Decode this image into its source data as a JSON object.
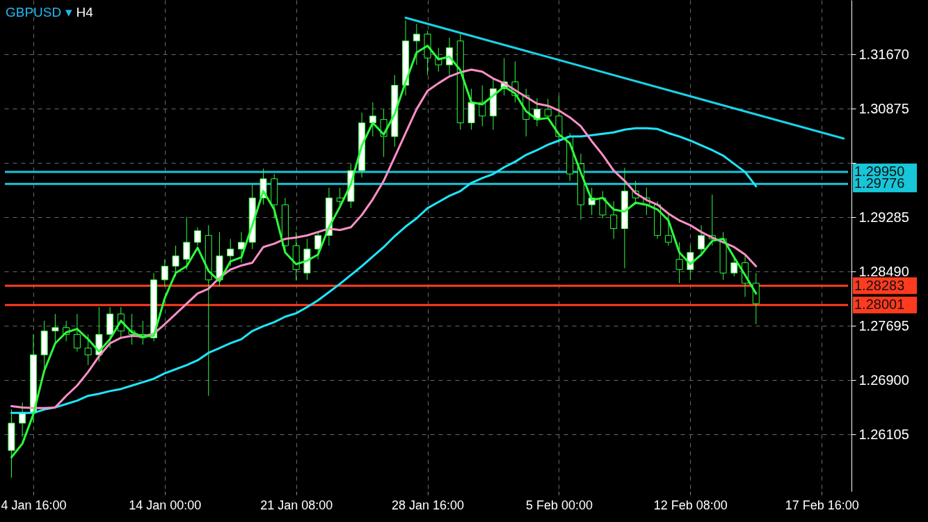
{
  "chart_data": {
    "type": "candlestick",
    "title": "GBPUSD ▾",
    "subtitle": "H4",
    "categories": [
      null,
      null,
      "4 Jan 16:00",
      null,
      null,
      null,
      null,
      null,
      null,
      null,
      null,
      null,
      null,
      null,
      "14 Jan 00:00",
      null,
      null,
      null,
      null,
      null,
      null,
      null,
      null,
      null,
      null,
      null,
      "21 Jan 08:00",
      null,
      null,
      null,
      null,
      null,
      null,
      null,
      null,
      null,
      null,
      null,
      "28 Jan 16:00",
      null,
      null,
      null,
      null,
      null,
      null,
      null,
      null,
      null,
      null,
      null,
      "5 Feb 00:00",
      null,
      null,
      null,
      null,
      null,
      null,
      null,
      null,
      null,
      null,
      null,
      "12 Feb 08:00",
      null,
      null,
      null,
      null,
      null,
      null,
      null,
      null,
      null,
      null,
      null,
      "17 Feb 16:00",
      null,
      null
    ],
    "ohlc": [
      [
        1.2587,
        1.2647,
        1.2547,
        1.2627
      ],
      [
        1.2627,
        1.2657,
        1.2607,
        1.2642
      ],
      [
        1.2642,
        1.2757,
        1.2627,
        1.2727
      ],
      [
        1.2727,
        1.2777,
        1.2707,
        1.2762
      ],
      [
        1.2762,
        1.2787,
        1.2742,
        1.2767
      ],
      [
        1.2767,
        1.2777,
        1.2747,
        1.2757
      ],
      [
        1.2757,
        1.2787,
        1.2732,
        1.2737
      ],
      [
        1.2737,
        1.2757,
        1.2712,
        1.2727
      ],
      [
        1.2727,
        1.2797,
        1.2717,
        1.2757
      ],
      [
        1.2757,
        1.2797,
        1.2737,
        1.2787
      ],
      [
        1.2787,
        1.2797,
        1.2752,
        1.2762
      ],
      [
        1.2762,
        1.2787,
        1.2742,
        1.2757
      ],
      [
        1.2757,
        1.2777,
        1.2742,
        1.2752
      ],
      [
        1.2752,
        1.2847,
        1.2747,
        1.2837
      ],
      [
        1.2837,
        1.2867,
        1.2827,
        1.2857
      ],
      [
        1.2857,
        1.2887,
        1.2842,
        1.2872
      ],
      [
        1.2867,
        1.2929,
        1.2852,
        1.2892
      ],
      [
        1.2892,
        1.2914,
        1.2887,
        1.2909
      ],
      [
        1.2902,
        1.2917,
        1.2667,
        1.2837
      ],
      [
        1.2837,
        1.2907,
        1.2827,
        1.2872
      ],
      [
        1.2872,
        1.2897,
        1.2857,
        1.2882
      ],
      [
        1.2882,
        1.2907,
        1.2862,
        1.2892
      ],
      [
        1.2892,
        1.2977,
        1.2882,
        1.2957
      ],
      [
        1.2957,
        1.3,
        1.2947,
        1.2985
      ],
      [
        1.2985,
        1.2992,
        1.2927,
        1.2947
      ],
      [
        1.2947,
        1.2957,
        1.2877,
        1.2887
      ],
      [
        1.2887,
        1.2907,
        1.2836,
        1.2852
      ],
      [
        1.2847,
        1.2897,
        1.2837,
        1.2882
      ],
      [
        1.2882,
        1.2907,
        1.2867,
        1.2902
      ],
      [
        1.2902,
        1.2972,
        1.2887,
        1.2957
      ],
      [
        1.2957,
        1.2972,
        1.2947,
        1.2952
      ],
      [
        1.2952,
        1.3007,
        1.2942,
        1.2997
      ],
      [
        1.2997,
        1.3082,
        1.2987,
        1.3067
      ],
      [
        1.3067,
        1.3097,
        1.3047,
        1.3077
      ],
      [
        1.3072,
        1.3087,
        1.3017,
        1.3047
      ],
      [
        1.3047,
        1.3137,
        1.3032,
        1.3122
      ],
      [
        1.3122,
        1.3217,
        1.3107,
        1.3187
      ],
      [
        1.3187,
        1.3212,
        1.3152,
        1.3197
      ],
      [
        1.3197,
        1.3202,
        1.3137,
        1.3162
      ],
      [
        1.3162,
        1.3177,
        1.3142,
        1.3152
      ],
      [
        1.3152,
        1.3192,
        1.3137,
        1.3177
      ],
      [
        1.3187,
        1.3197,
        1.3057,
        1.3067
      ],
      [
        1.3067,
        1.3117,
        1.3057,
        1.3097
      ],
      [
        1.3097,
        1.3122,
        1.3062,
        1.3077
      ],
      [
        1.3077,
        1.3132,
        1.3057,
        1.3117
      ],
      [
        1.3117,
        1.3162,
        1.3107,
        1.3127
      ],
      [
        1.3127,
        1.3157,
        1.3097,
        1.3107
      ],
      [
        1.3107,
        1.3117,
        1.3047,
        1.3072
      ],
      [
        1.3072,
        1.3103,
        1.3062,
        1.3087
      ],
      [
        1.3087,
        1.3102,
        1.3072,
        1.3077
      ],
      [
        1.3077,
        1.3107,
        1.3037,
        1.3047
      ],
      [
        1.3047,
        1.3052,
        1.2982,
        1.2992
      ],
      [
        1.3007,
        1.3022,
        1.2925,
        1.2947
      ],
      [
        1.2947,
        1.2972,
        1.2932,
        1.2957
      ],
      [
        1.2957,
        1.2967,
        1.2927,
        1.2932
      ],
      [
        1.2932,
        1.2952,
        1.2897,
        1.2912
      ],
      [
        1.2912,
        1.3001,
        1.2854,
        1.2967
      ],
      [
        1.2967,
        1.2982,
        1.2947,
        1.2957
      ],
      [
        1.2957,
        1.2972,
        1.2932,
        1.2947
      ],
      [
        1.2947,
        1.2952,
        1.2897,
        1.2902
      ],
      [
        1.2902,
        1.2932,
        1.2887,
        1.2892
      ],
      [
        1.2867,
        1.2892,
        1.2832,
        1.2852
      ],
      [
        1.2852,
        1.2887,
        1.2837,
        1.2877
      ],
      [
        1.2882,
        1.2917,
        1.2872,
        1.2902
      ],
      [
        1.2902,
        1.2962,
        1.2887,
        1.2897
      ],
      [
        1.2897,
        1.2907,
        1.2837,
        1.2847
      ],
      [
        1.2847,
        1.2872,
        1.2842,
        1.2862
      ],
      [
        1.2862,
        1.2872,
        1.2812,
        1.2832
      ],
      [
        1.2832,
        1.2847,
        1.2772,
        1.2802
      ],
      null,
      null,
      null,
      null,
      null,
      null,
      null,
      null
    ],
    "series": [
      {
        "type": "line",
        "color": "#1ee6ff",
        "values": [
          1.2642,
          1.2642,
          1.2642,
          1.2647,
          1.265,
          1.2655,
          1.266,
          1.2667,
          1.267,
          1.2674,
          1.2677,
          1.2682,
          1.2687,
          1.2692,
          1.27,
          1.2706,
          1.2712,
          1.2719,
          1.273,
          1.2737,
          1.2744,
          1.275,
          1.2762,
          1.2769,
          1.2775,
          1.2783,
          1.2788,
          1.2797,
          1.2807,
          1.2819,
          1.2831,
          1.2844,
          1.2857,
          1.2871,
          1.2885,
          1.2901,
          1.2915,
          1.2927,
          1.2942,
          1.2951,
          1.296,
          1.2967,
          1.2979,
          1.2986,
          1.2992,
          1.3002,
          1.301,
          1.302,
          1.3027,
          1.3035,
          1.3041,
          1.3047,
          1.3047,
          1.3049,
          1.3051,
          1.3053,
          1.3057,
          1.3059,
          1.3059,
          1.3058,
          1.3052,
          1.3047,
          1.3041,
          1.3034,
          1.3027,
          1.3019,
          1.3007,
          1.2995,
          1.2974,
          null,
          null,
          null,
          null,
          null,
          null,
          null,
          null
        ]
      },
      {
        "type": "line",
        "color": "#ff8fc8",
        "values": [
          1.2652,
          1.265,
          1.2649,
          1.2649,
          1.265,
          1.2667,
          1.2682,
          1.2702,
          1.2725,
          1.2744,
          1.2752,
          1.2755,
          1.2754,
          1.2758,
          1.2772,
          1.2787,
          1.2802,
          1.2817,
          1.2824,
          1.284,
          1.2852,
          1.2858,
          1.2862,
          1.2885,
          1.289,
          1.2897,
          1.2899,
          1.2902,
          1.2907,
          1.2912,
          1.291,
          1.2914,
          1.2932,
          1.2955,
          1.2982,
          1.3017,
          1.3052,
          1.3087,
          1.3114,
          1.3125,
          1.3135,
          1.3141,
          1.3145,
          1.3142,
          1.3132,
          1.3125,
          1.3115,
          1.3105,
          1.3095,
          1.3092,
          1.3085,
          1.3075,
          1.3062,
          1.304,
          1.302,
          1.2997,
          1.2982,
          1.2964,
          1.2954,
          1.2947,
          1.2934,
          1.2924,
          1.2917,
          1.2907,
          1.2899,
          1.2892,
          1.2885,
          1.2874,
          1.2857,
          null,
          null,
          null,
          null,
          null,
          null,
          null,
          null
        ]
      },
      {
        "type": "line",
        "color": "#2cff3c",
        "values": [
          1.2577,
          1.2597,
          1.264,
          1.2704,
          1.2744,
          1.276,
          1.2765,
          1.275,
          1.2732,
          1.275,
          1.2777,
          1.276,
          1.2754,
          1.2755,
          1.281,
          1.2847,
          1.2857,
          1.2884,
          1.285,
          1.2835,
          1.2864,
          1.287,
          1.2917,
          1.2967,
          1.294,
          1.2877,
          1.286,
          1.2865,
          1.2874,
          1.2914,
          1.2944,
          1.2977,
          1.3034,
          1.3067,
          1.305,
          1.308,
          1.3127,
          1.317,
          1.318,
          1.316,
          1.3164,
          1.3144,
          1.3097,
          1.3094,
          1.3107,
          1.312,
          1.311,
          1.3084,
          1.3072,
          1.3074,
          1.305,
          1.3037,
          1.2994,
          1.2954,
          1.2957,
          1.294,
          1.2937,
          1.295,
          1.2947,
          1.294,
          1.2924,
          1.2877,
          1.286,
          1.2874,
          1.2894,
          1.2897,
          1.287,
          1.2844,
          1.2817,
          null,
          null,
          null,
          null,
          null,
          null,
          null,
          null
        ]
      },
      {
        "type": "line",
        "color": "#19d3e8",
        "values": [
          null,
          null,
          null,
          null,
          null,
          null,
          null,
          null,
          null,
          null,
          null,
          null,
          null,
          null,
          null,
          null,
          null,
          null,
          null,
          null,
          null,
          null,
          null,
          null,
          null,
          null,
          null,
          null,
          null,
          null,
          null,
          null,
          null,
          null,
          null,
          null,
          1.3221,
          null,
          null,
          null,
          null,
          null,
          null,
          null,
          null,
          null,
          null,
          null,
          null,
          null,
          null,
          null,
          null,
          null,
          null,
          null,
          null,
          null,
          null,
          null,
          null,
          null,
          null,
          null,
          null,
          null,
          null,
          null,
          null,
          null,
          null,
          null,
          null,
          null,
          null,
          null,
          1.3044
        ]
      }
    ],
    "ylim": [
      1.2527,
      1.3247
    ],
    "yticks": [
      {
        "value": 1.3167,
        "label": "1.31670"
      },
      1.30875,
      {
        "value": 1.3008,
        "label": null
      },
      1.29285,
      {
        "value": 1.2849,
        "label": "1.28490"
      },
      1.27695,
      {
        "value": 1.269,
        "label": "1.26900"
      },
      1.26105
    ],
    "ref_lines": [
      {
        "axis": "y",
        "value": 1.2995,
        "label": "1.29950",
        "color": "#17c6d8"
      },
      {
        "axis": "y",
        "value": 1.29776,
        "label": "1.29776",
        "color": "#17c6d8"
      },
      {
        "axis": "y",
        "value": 1.28283,
        "label": "1.28283",
        "color": "#ff3b1f"
      },
      {
        "axis": "y",
        "value": 1.28001,
        "label": "1.28001",
        "color": "#ff3b1f"
      }
    ],
    "grid": true
  }
}
